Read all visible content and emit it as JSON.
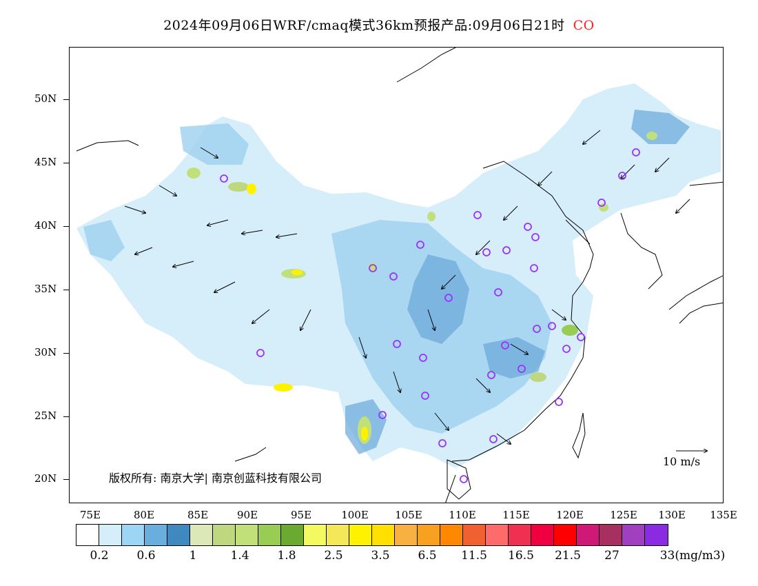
{
  "title": {
    "text": "2024年09月06日WRF/cmaq模式36km预报产品:09月06日21时",
    "pollutant": "CO",
    "pollutant_color": "#ff2020"
  },
  "axes": {
    "lat_labels": [
      "50N",
      "45N",
      "40N",
      "35N",
      "30N",
      "25N",
      "20N"
    ],
    "lon_labels": [
      "75E",
      "80E",
      "85E",
      "90E",
      "95E",
      "100E",
      "105E",
      "110E",
      "115E",
      "120E",
      "125E",
      "130E",
      "135E"
    ]
  },
  "copyright": "版权所有: 南京大学| 南京创蓝科技有限公司",
  "wind_reference": "10 m/s",
  "legend": {
    "colors": [
      "#ffffff",
      "#d6eefa",
      "#9dd6f5",
      "#6aaedd",
      "#3f88c0",
      "#dde8b8",
      "#bfd880",
      "#c2e07a",
      "#98cc52",
      "#6aaa30",
      "#f2fa60",
      "#f5e858",
      "#fff200",
      "#ffe000",
      "#f8b040",
      "#f8a020",
      "#ff8800",
      "#f06030",
      "#ff6a6a",
      "#f03050",
      "#f00040",
      "#ff0000",
      "#d01878",
      "#a83060",
      "#a040c0",
      "#8a2be2"
    ],
    "labels": [
      "0.2",
      "0.6",
      "1",
      "1.4",
      "1.8",
      "2.5",
      "3.5",
      "6.5",
      "11.5",
      "16.5",
      "21.5",
      "27",
      "33(mg/m3)"
    ],
    "accent_colors": {
      "station_marker": "#9b30ff",
      "light_blue": "#cfe9f7",
      "mid_blue": "#9dd0ef",
      "dark_blue": "#6aa8d8"
    }
  }
}
